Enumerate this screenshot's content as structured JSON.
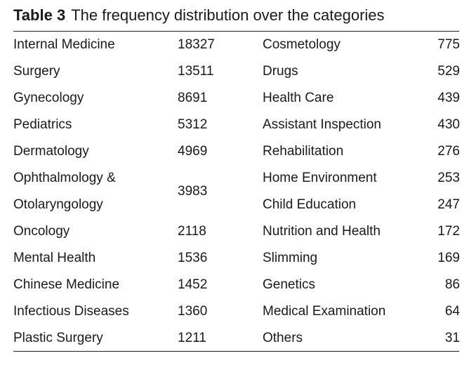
{
  "caption": {
    "label": "Table 3",
    "text": "The frequency distribution over the categories"
  },
  "left_rows": [
    {
      "name": "Internal Medicine",
      "count": "18327"
    },
    {
      "name": "Surgery",
      "count": "13511"
    },
    {
      "name": "Gynecology",
      "count": "8691"
    },
    {
      "name": "Pediatrics",
      "count": "5312"
    },
    {
      "name": "Dermatology",
      "count": "4969"
    },
    {
      "name": "Ophthalmology &",
      "name2": "Otolaryngology",
      "count": "3983"
    },
    {
      "name": "Oncology",
      "count": "2118"
    },
    {
      "name": "Mental Health",
      "count": "1536"
    },
    {
      "name": "Chinese Medicine",
      "count": "1452"
    },
    {
      "name": "Infectious Diseases",
      "count": "1360"
    },
    {
      "name": "Plastic Surgery",
      "count": "1211"
    }
  ],
  "right_rows": [
    {
      "name": "Cosmetology",
      "count": "775"
    },
    {
      "name": "Drugs",
      "count": "529"
    },
    {
      "name": "Health Care",
      "count": "439"
    },
    {
      "name": "Assistant Inspection",
      "count": "430"
    },
    {
      "name": "Rehabilitation",
      "count": "276"
    },
    {
      "name": "Home Environment",
      "count": "253"
    },
    {
      "name": "Child Education",
      "count": "247"
    },
    {
      "name": "Nutrition and Health",
      "count": "172"
    },
    {
      "name": "Slimming",
      "count": "169"
    },
    {
      "name": "Genetics",
      "count": "86"
    },
    {
      "name": "Medical Examination",
      "count": "64"
    },
    {
      "name": "Others",
      "count": "31"
    }
  ]
}
